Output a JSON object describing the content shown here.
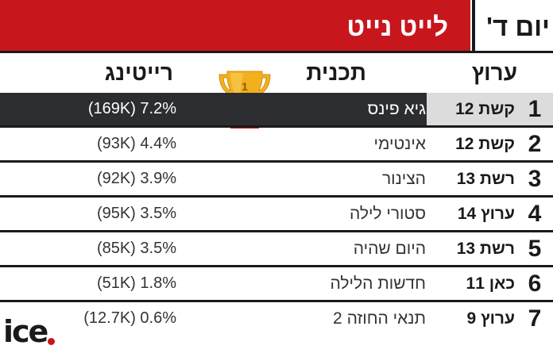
{
  "header": {
    "title": "לייט נייט",
    "day": "יום ד'"
  },
  "columns": {
    "channel": "ערוץ",
    "program": "תכנית",
    "rating": "רייטינג"
  },
  "trophy_rank": "1",
  "rows": [
    {
      "rank": "1",
      "channel": "קשת 12",
      "program": "גיא פינס",
      "rating": "(169K) 7.2%"
    },
    {
      "rank": "2",
      "channel": "קשת 12",
      "program": "אינטימי",
      "rating": "(93K) 4.4%"
    },
    {
      "rank": "3",
      "channel": "רשת 13",
      "program": "הצינור",
      "rating": "(92K) 3.9%"
    },
    {
      "rank": "4",
      "channel": "ערוץ 14",
      "program": "סטורי לילה",
      "rating": "(95K) 3.5%"
    },
    {
      "rank": "5",
      "channel": "רשת 13",
      "program": "היום שהיה",
      "rating": "(85K) 3.5%"
    },
    {
      "rank": "6",
      "channel": "כאן 11",
      "program": "חדשות הלילה",
      "rating": "(51K) 1.8%"
    },
    {
      "rank": "7",
      "channel": "ערוץ 9",
      "program": "תנאי החוזה 2",
      "rating": "(12.7K) 0.6%"
    }
  ],
  "logo": {
    "text": "ice"
  },
  "colors": {
    "brand_red": "#c8161d",
    "dark_row": "#2c2d31",
    "gold": "#f2b01e"
  }
}
